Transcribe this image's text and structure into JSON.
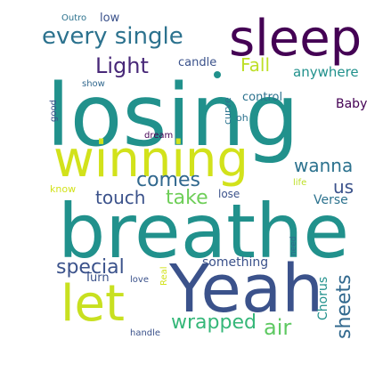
{
  "words": {
    "losing": "losing",
    "breathe": "breathe",
    "yeah": "Yeah",
    "winning": "winning",
    "sleep": "sleep",
    "let": "let",
    "every_single": "every single",
    "light": "Light",
    "fall": "Fall",
    "wanna": "wanna",
    "comes": "comes",
    "touch": "touch",
    "take": "take",
    "us": "us",
    "special": "special",
    "sheets": "sheets",
    "wrapped": "wrapped",
    "air": "air",
    "something": "something",
    "anywhere": "anywhere",
    "candle": "candle",
    "control": "control",
    "baby": "Baby",
    "verse": "Verse",
    "chorus": "Chorus",
    "turn": "Turn",
    "low": "low",
    "outro": "Outro",
    "show": "show",
    "good": "good",
    "curve": "curve",
    "oh": "oh",
    "dream": "dream",
    "know": "know",
    "lose": "lose",
    "life": "life",
    "need": "need",
    "love": "love",
    "real": "Real",
    "handle": "handle"
  },
  "colors": {
    "teal": "#21918c",
    "purple": "#440154",
    "indigo": "#3b528b",
    "dark_indigo": "#31688e",
    "green": "#5ec962",
    "lime": "#b5de2b",
    "yellow": "#fde725",
    "mid_teal": "#2c728e",
    "cyan_green": "#35b779",
    "deep_purple": "#482878"
  }
}
